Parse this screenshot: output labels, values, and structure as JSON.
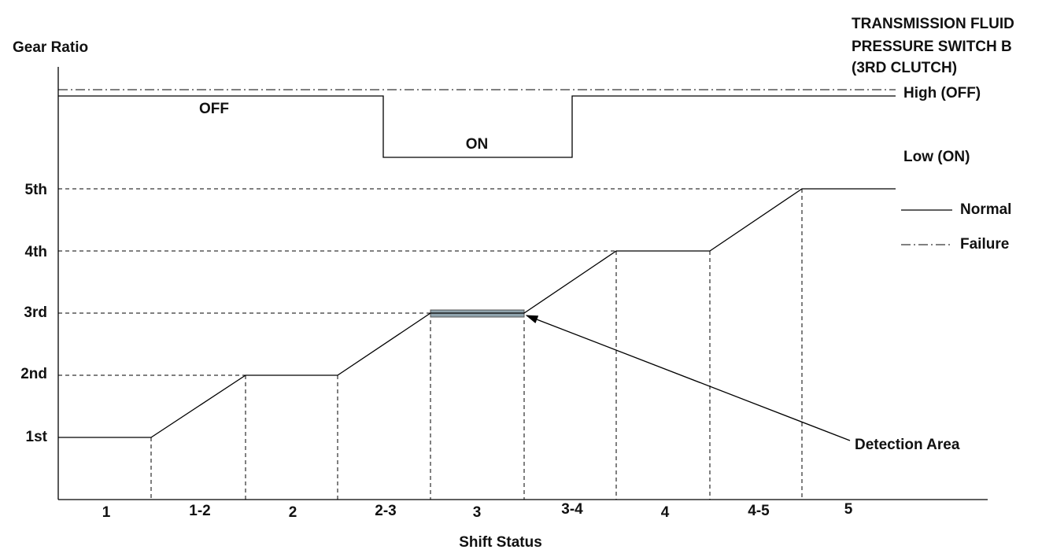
{
  "y_axis_label": "Gear Ratio",
  "switch_title": [
    "TRANSMISSION FLUID",
    "PRESSURE SWITCH B",
    "(3RD CLUTCH)"
  ],
  "switch_states": {
    "high": "High (OFF)",
    "low": "Low (ON)",
    "off_label": "OFF",
    "on_label": "ON"
  },
  "gears": [
    "5th",
    "4th",
    "3rd",
    "2nd",
    "1st"
  ],
  "legend": {
    "normal": "Normal",
    "failure": "Failure"
  },
  "annotation": "Detection Area",
  "shift_statuses": [
    "1",
    "1-2",
    "2",
    "2-3",
    "3",
    "3-4",
    "4",
    "4-5",
    "5"
  ],
  "x_axis_label": "Shift Status"
}
